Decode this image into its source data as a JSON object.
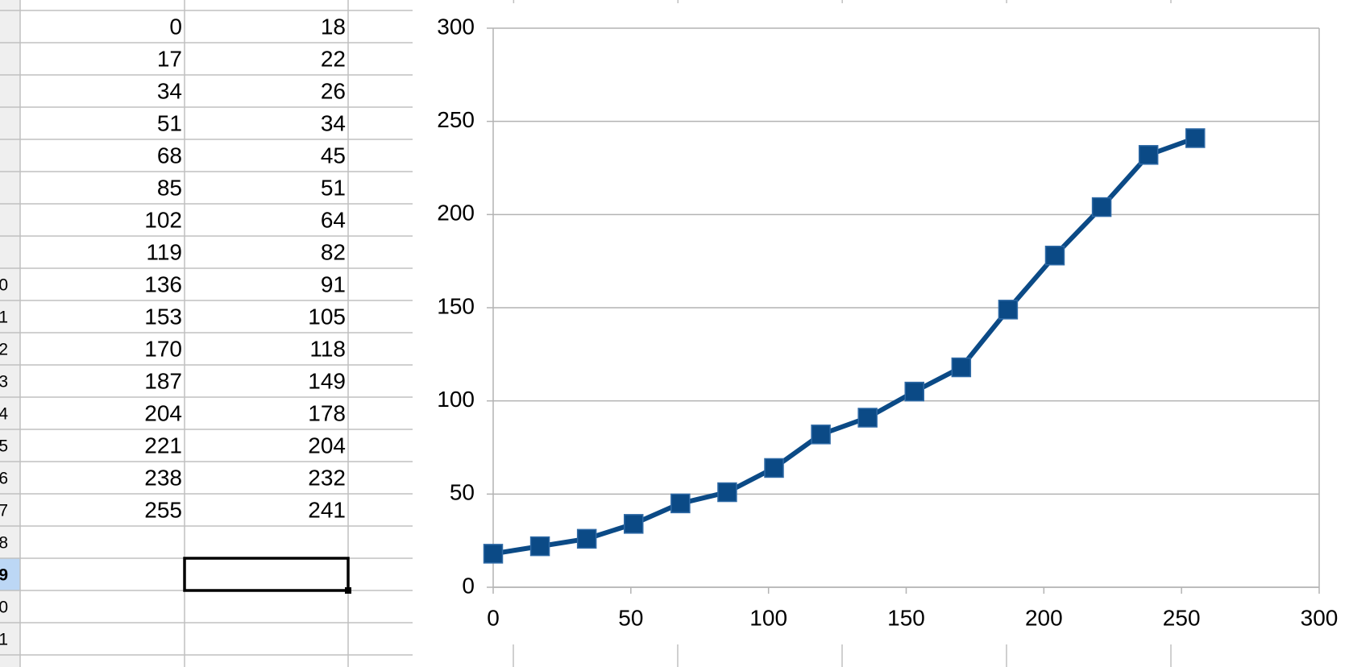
{
  "sheet": {
    "rows": [
      {
        "label": null,
        "cells": [
          0,
          18
        ]
      },
      {
        "label": null,
        "cells": [
          17,
          22
        ]
      },
      {
        "label": null,
        "cells": [
          34,
          26
        ]
      },
      {
        "label": null,
        "cells": [
          51,
          34
        ]
      },
      {
        "label": null,
        "cells": [
          68,
          45
        ]
      },
      {
        "label": null,
        "cells": [
          85,
          51
        ]
      },
      {
        "label": null,
        "cells": [
          102,
          64
        ]
      },
      {
        "label": null,
        "cells": [
          119,
          82
        ]
      },
      {
        "label": "0",
        "cells": [
          136,
          91
        ]
      },
      {
        "label": "1",
        "cells": [
          153,
          105
        ]
      },
      {
        "label": "2",
        "cells": [
          170,
          118
        ]
      },
      {
        "label": "3",
        "cells": [
          187,
          149
        ]
      },
      {
        "label": "4",
        "cells": [
          204,
          178
        ]
      },
      {
        "label": "5",
        "cells": [
          221,
          204
        ]
      },
      {
        "label": "6",
        "cells": [
          238,
          232
        ]
      },
      {
        "label": "7",
        "cells": [
          255,
          241
        ]
      },
      {
        "label": "8"
      },
      {
        "label": "9"
      },
      {
        "label": "0"
      },
      {
        "label": "1"
      }
    ]
  },
  "chart_data": {
    "type": "line",
    "x": [
      0,
      17,
      34,
      51,
      68,
      85,
      102,
      119,
      136,
      153,
      170,
      187,
      204,
      221,
      238,
      255
    ],
    "values": [
      18,
      22,
      26,
      34,
      45,
      51,
      64,
      82,
      91,
      105,
      118,
      149,
      178,
      204,
      232,
      241
    ],
    "color": "#0b4a86",
    "marker": "square",
    "xlim": [
      0,
      300
    ],
    "xticks": [
      0,
      50,
      100,
      150,
      200,
      250,
      300
    ],
    "ylim": [
      0,
      300
    ],
    "yticks": [
      0,
      50,
      100,
      150,
      200,
      250,
      300
    ],
    "grid": true
  }
}
